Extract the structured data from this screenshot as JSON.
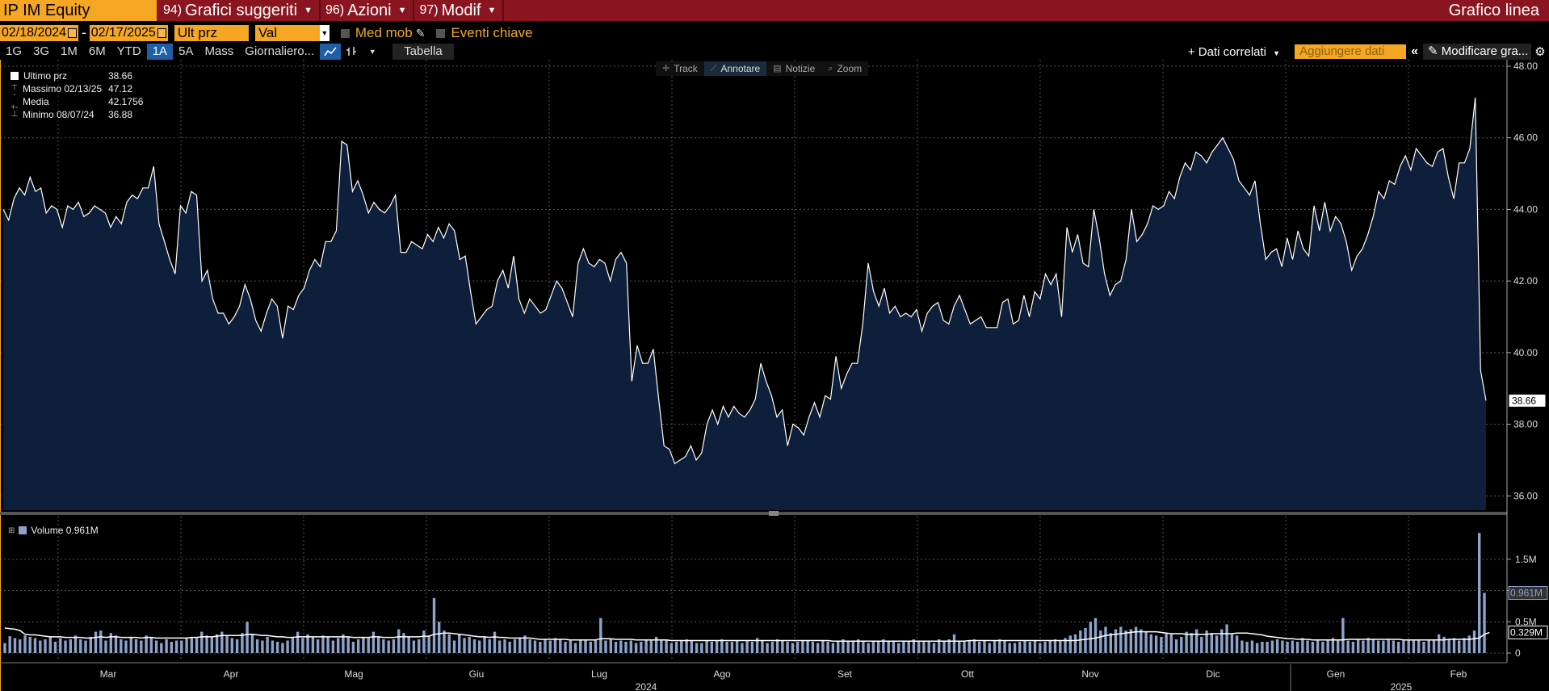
{
  "header": {
    "ticker": "IP IM Equity",
    "menus": [
      {
        "num": "94)",
        "label": "Grafici suggeriti"
      },
      {
        "num": "96)",
        "label": "Azioni"
      },
      {
        "num": "97)",
        "label": "Modif"
      }
    ],
    "chart_type_label": "Grafico linea"
  },
  "controls": {
    "start_date": "02/18/2024",
    "end_date": "02/17/2025",
    "date_separator": "-",
    "field": "Ult prz",
    "currency": "Val locale",
    "moving_avg_label": "Med mob",
    "key_events_label": "Eventi chiave"
  },
  "toolbar": {
    "periods": [
      "1G",
      "3G",
      "1M",
      "6M",
      "YTD",
      "1A",
      "5A",
      "Mass"
    ],
    "active_period": "1A",
    "frequency": "Giornaliero...",
    "table_label": "Tabella",
    "related_data_label": "+ Dati correlati",
    "add_data_placeholder": "Aggiungere dati",
    "modify_chart_label": "Modificare gra...",
    "icons": {
      "line_chart": "line-chart-icon",
      "bar_chart": "ohlc-icon",
      "settings": "gear-icon",
      "collapse": "collapse-icon"
    }
  },
  "chart_tools": [
    {
      "label": "Track",
      "icon": "crosshair-icon",
      "active": false
    },
    {
      "label": "Annotare",
      "icon": "pencil-icon",
      "active": true
    },
    {
      "label": "Notizie",
      "icon": "news-icon",
      "active": false
    },
    {
      "label": "Zoom",
      "icon": "zoom-icon",
      "active": false
    }
  ],
  "legend": [
    {
      "label": "Ultimo prz",
      "value": "38.66"
    },
    {
      "label": "Massimo 02/13/25",
      "value": "47.12"
    },
    {
      "label": "Media",
      "value": "42.1756"
    },
    {
      "label": "Minimo 08/07/24",
      "value": "36.88"
    }
  ],
  "volume_legend": {
    "label": "Volume 0.961M"
  },
  "colors": {
    "accent": "#f5a623",
    "header": "#8a1520",
    "price_fill": "#0d1f3a",
    "volume_bar": "#8ca3cc",
    "active": "#1f5fa8"
  },
  "chart_data": [
    {
      "type": "area",
      "series": [
        {
          "name": "Ultimo prz",
          "values": [
            44.0,
            43.7,
            44.3,
            44.6,
            44.4,
            44.9,
            44.5,
            44.6,
            43.9,
            44.1,
            44.0,
            43.5,
            44.1,
            44.0,
            44.2,
            43.8,
            43.9,
            44.1,
            44.0,
            43.9,
            43.5,
            43.8,
            43.6,
            44.2,
            44.4,
            44.3,
            44.6,
            44.6,
            45.2,
            43.6,
            43.1,
            42.6,
            42.2,
            44.1,
            43.9,
            44.5,
            44.4,
            42.0,
            42.3,
            41.5,
            41.1,
            41.1,
            40.8,
            41.0,
            41.3,
            41.9,
            41.5,
            40.9,
            40.6,
            41.1,
            41.5,
            41.3,
            40.4,
            41.3,
            41.2,
            41.6,
            41.8,
            42.3,
            42.6,
            42.4,
            43.1,
            43.1,
            43.4,
            45.9,
            45.8,
            44.5,
            44.8,
            44.4,
            43.9,
            44.2,
            44.0,
            43.9,
            44.1,
            44.4,
            42.8,
            42.8,
            43.1,
            43.0,
            42.9,
            43.3,
            43.1,
            43.5,
            43.2,
            43.6,
            43.4,
            42.6,
            42.7,
            41.7,
            40.8,
            41.0,
            41.2,
            41.3,
            42.0,
            42.3,
            41.8,
            42.7,
            41.5,
            41.1,
            41.5,
            41.3,
            41.1,
            41.2,
            41.6,
            42.0,
            41.8,
            41.4,
            41.0,
            42.5,
            42.9,
            42.5,
            42.4,
            42.6,
            42.5,
            42.0,
            42.6,
            42.8,
            42.5,
            39.2,
            40.2,
            39.7,
            39.7,
            40.1,
            38.7,
            37.4,
            37.3,
            36.9,
            37.0,
            37.1,
            37.4,
            37.0,
            37.2,
            38.0,
            38.4,
            38.0,
            38.5,
            38.2,
            38.5,
            38.3,
            38.2,
            38.4,
            38.7,
            39.7,
            39.2,
            38.8,
            38.2,
            38.4,
            37.4,
            38.0,
            37.9,
            37.7,
            38.2,
            38.6,
            38.2,
            38.8,
            38.7,
            39.9,
            39.0,
            39.4,
            39.7,
            39.7,
            40.8,
            42.5,
            41.7,
            41.3,
            41.8,
            41.1,
            41.3,
            41.0,
            41.1,
            41.0,
            41.2,
            40.6,
            41.1,
            41.3,
            41.4,
            40.9,
            40.8,
            41.3,
            41.6,
            41.2,
            40.8,
            40.9,
            41.0,
            40.7,
            40.7,
            40.7,
            41.4,
            41.5,
            40.8,
            40.9,
            41.6,
            41.0,
            41.7,
            41.5,
            42.2,
            41.9,
            42.2,
            41.0,
            43.5,
            42.8,
            43.3,
            42.5,
            42.4,
            44.0,
            43.2,
            42.2,
            41.6,
            41.9,
            42.0,
            42.6,
            44.0,
            43.1,
            43.3,
            43.6,
            44.1,
            44.0,
            44.1,
            44.5,
            44.3,
            44.9,
            45.3,
            45.1,
            45.6,
            45.5,
            45.3,
            45.6,
            45.8,
            46.0,
            45.7,
            45.4,
            44.8,
            44.6,
            44.4,
            44.8,
            43.6,
            42.6,
            42.8,
            42.9,
            42.4,
            43.2,
            42.6,
            43.4,
            42.9,
            42.7,
            44.1,
            43.4,
            44.2,
            43.4,
            43.8,
            43.6,
            43.1,
            42.3,
            42.7,
            42.9,
            43.3,
            43.8,
            44.5,
            44.3,
            44.8,
            44.7,
            45.2,
            45.5,
            45.1,
            45.7,
            45.5,
            45.3,
            45.2,
            45.6,
            45.7,
            44.9,
            44.3,
            45.3,
            45.3,
            45.7,
            47.12,
            39.5,
            38.66
          ]
        }
      ],
      "ylim": [
        35.6,
        48.0
      ],
      "yticks": [
        "48.00",
        "46.00",
        "44.00",
        "42.00",
        "40.00",
        "38.00",
        "36.00"
      ],
      "last_value_label": "38.66",
      "grid": true
    },
    {
      "type": "bar",
      "series": [
        {
          "name": "Volume",
          "values": [
            0.16,
            0.27,
            0.24,
            0.22,
            0.28,
            0.26,
            0.24,
            0.2,
            0.22,
            0.26,
            0.18,
            0.24,
            0.2,
            0.22,
            0.28,
            0.22,
            0.2,
            0.26,
            0.34,
            0.36,
            0.2,
            0.32,
            0.28,
            0.22,
            0.2,
            0.26,
            0.22,
            0.2,
            0.28,
            0.26,
            0.2,
            0.16,
            0.22,
            0.18,
            0.2,
            0.2,
            0.24,
            0.26,
            0.24,
            0.34,
            0.28,
            0.26,
            0.3,
            0.34,
            0.28,
            0.24,
            0.22,
            0.32,
            0.5,
            0.3,
            0.22,
            0.2,
            0.26,
            0.2,
            0.18,
            0.16,
            0.2,
            0.24,
            0.34,
            0.24,
            0.3,
            0.26,
            0.22,
            0.28,
            0.26,
            0.2,
            0.24,
            0.3,
            0.26,
            0.18,
            0.22,
            0.26,
            0.24,
            0.34,
            0.26,
            0.22,
            0.2,
            0.22,
            0.38,
            0.32,
            0.26,
            0.2,
            0.22,
            0.36,
            0.28,
            0.88,
            0.5,
            0.36,
            0.3,
            0.2,
            0.3,
            0.24,
            0.26,
            0.22,
            0.2,
            0.26,
            0.22,
            0.34,
            0.2,
            0.22,
            0.18,
            0.22,
            0.24,
            0.28,
            0.22,
            0.2,
            0.18,
            0.22,
            0.2,
            0.24,
            0.22,
            0.18,
            0.2,
            0.16,
            0.2,
            0.22,
            0.18,
            0.2,
            0.56,
            0.2,
            0.22,
            0.18,
            0.2,
            0.18,
            0.2,
            0.16,
            0.18,
            0.22,
            0.2,
            0.26,
            0.2,
            0.22,
            0.16,
            0.18,
            0.2,
            0.22,
            0.2,
            0.16,
            0.16,
            0.2,
            0.18,
            0.2,
            0.22,
            0.18,
            0.18,
            0.2,
            0.16,
            0.2,
            0.18,
            0.24,
            0.2,
            0.16,
            0.18,
            0.22,
            0.2,
            0.18,
            0.16,
            0.18,
            0.2,
            0.2,
            0.18,
            0.16,
            0.2,
            0.18,
            0.16,
            0.2,
            0.22,
            0.18,
            0.2,
            0.22,
            0.18,
            0.16,
            0.2,
            0.18,
            0.22,
            0.2,
            0.18,
            0.16,
            0.18,
            0.2,
            0.22,
            0.18,
            0.2,
            0.2,
            0.16,
            0.22,
            0.2,
            0.22,
            0.3,
            0.2,
            0.18,
            0.2,
            0.22,
            0.18,
            0.2,
            0.16,
            0.2,
            0.22,
            0.2,
            0.16,
            0.16,
            0.18,
            0.2,
            0.18,
            0.2,
            0.16,
            0.18,
            0.2,
            0.22,
            0.2,
            0.24,
            0.28,
            0.3,
            0.36,
            0.4,
            0.5,
            0.56,
            0.36,
            0.42,
            0.32,
            0.38,
            0.42,
            0.36,
            0.38,
            0.42,
            0.38,
            0.34,
            0.3,
            0.28,
            0.26,
            0.32,
            0.3,
            0.22,
            0.26,
            0.34,
            0.32,
            0.38,
            0.26,
            0.36,
            0.32,
            0.28,
            0.38,
            0.46,
            0.3,
            0.28,
            0.2,
            0.18,
            0.2,
            0.16,
            0.18,
            0.18,
            0.2,
            0.22,
            0.2,
            0.18,
            0.2,
            0.18,
            0.24,
            0.2,
            0.18,
            0.22,
            0.18,
            0.2,
            0.24,
            0.2,
            0.56,
            0.2,
            0.18,
            0.22,
            0.2,
            0.24,
            0.22,
            0.2,
            0.2,
            0.22,
            0.2,
            0.18,
            0.2,
            0.22,
            0.2,
            0.22,
            0.18,
            0.2,
            0.2,
            0.3,
            0.26,
            0.22,
            0.24,
            0.2,
            0.24,
            0.28,
            0.36,
            1.92,
            0.961
          ]
        },
        {
          "name": "Media mobile volume",
          "values": [
            0.4,
            0.39,
            0.38,
            0.36,
            0.3,
            0.29,
            0.29,
            0.28,
            0.27,
            0.26,
            0.26,
            0.26,
            0.25,
            0.25,
            0.25,
            0.25,
            0.24,
            0.24,
            0.25,
            0.26,
            0.25,
            0.26,
            0.26,
            0.25,
            0.25,
            0.25,
            0.25,
            0.24,
            0.25,
            0.25,
            0.24,
            0.24,
            0.24,
            0.24,
            0.24,
            0.24,
            0.24,
            0.25,
            0.25,
            0.26,
            0.26,
            0.26,
            0.27,
            0.28,
            0.28,
            0.28,
            0.28,
            0.28,
            0.3,
            0.3,
            0.29,
            0.28,
            0.28,
            0.27,
            0.26,
            0.26,
            0.25,
            0.25,
            0.26,
            0.26,
            0.26,
            0.26,
            0.26,
            0.26,
            0.26,
            0.26,
            0.26,
            0.26,
            0.26,
            0.25,
            0.25,
            0.25,
            0.25,
            0.26,
            0.26,
            0.25,
            0.25,
            0.25,
            0.26,
            0.26,
            0.26,
            0.26,
            0.26,
            0.27,
            0.27,
            0.3,
            0.31,
            0.32,
            0.32,
            0.31,
            0.3,
            0.29,
            0.28,
            0.27,
            0.26,
            0.26,
            0.25,
            0.26,
            0.25,
            0.25,
            0.24,
            0.24,
            0.24,
            0.24,
            0.24,
            0.23,
            0.22,
            0.22,
            0.22,
            0.22,
            0.22,
            0.22,
            0.21,
            0.21,
            0.21,
            0.21,
            0.21,
            0.21,
            0.23,
            0.23,
            0.23,
            0.22,
            0.22,
            0.22,
            0.22,
            0.21,
            0.21,
            0.21,
            0.21,
            0.21,
            0.21,
            0.21,
            0.2,
            0.2,
            0.2,
            0.2,
            0.2,
            0.2,
            0.2,
            0.2,
            0.2,
            0.2,
            0.2,
            0.2,
            0.2,
            0.2,
            0.2,
            0.2,
            0.2,
            0.2,
            0.2,
            0.2,
            0.2,
            0.2,
            0.2,
            0.2,
            0.2,
            0.2,
            0.2,
            0.2,
            0.2,
            0.2,
            0.2,
            0.2,
            0.19,
            0.19,
            0.19,
            0.19,
            0.19,
            0.19,
            0.19,
            0.19,
            0.19,
            0.19,
            0.19,
            0.19,
            0.19,
            0.19,
            0.19,
            0.19,
            0.19,
            0.19,
            0.19,
            0.19,
            0.19,
            0.19,
            0.19,
            0.19,
            0.19,
            0.19,
            0.19,
            0.2,
            0.2,
            0.2,
            0.2,
            0.2,
            0.2,
            0.2,
            0.2,
            0.2,
            0.2,
            0.2,
            0.2,
            0.2,
            0.2,
            0.2,
            0.2,
            0.2,
            0.2,
            0.2,
            0.2,
            0.2,
            0.2,
            0.21,
            0.22,
            0.23,
            0.24,
            0.26,
            0.28,
            0.29,
            0.3,
            0.31,
            0.32,
            0.33,
            0.34,
            0.34,
            0.34,
            0.34,
            0.34,
            0.33,
            0.32,
            0.31,
            0.31,
            0.31,
            0.3,
            0.3,
            0.3,
            0.3,
            0.3,
            0.31,
            0.31,
            0.31,
            0.31,
            0.31,
            0.32,
            0.32,
            0.32,
            0.31,
            0.3,
            0.29,
            0.27,
            0.26,
            0.25,
            0.24,
            0.23,
            0.23,
            0.22,
            0.22,
            0.22,
            0.21,
            0.21,
            0.21,
            0.21,
            0.21,
            0.21,
            0.21,
            0.22,
            0.22,
            0.22,
            0.22,
            0.22,
            0.22,
            0.22,
            0.22,
            0.22,
            0.22,
            0.22,
            0.21,
            0.21,
            0.21,
            0.21,
            0.21,
            0.21,
            0.21,
            0.21,
            0.21,
            0.22,
            0.22,
            0.22,
            0.22,
            0.22,
            0.23,
            0.24,
            0.3,
            0.329
          ]
        }
      ],
      "ylim": [
        0,
        2.0
      ],
      "yticks": [
        {
          "v": 1.5,
          "label": "1.5M"
        },
        {
          "v": 1.0,
          "label": "1M"
        },
        {
          "v": 0.5,
          "label": "0.5M"
        },
        {
          "v": 0,
          "label": "0"
        }
      ],
      "last_value_labels": [
        "0.961M",
        "0.329M"
      ],
      "x_month_labels": [
        "Mar",
        "Apr",
        "Mag",
        "Giu",
        "Lug",
        "Ago",
        "Set",
        "Ott",
        "Nov",
        "Dic",
        "Gen",
        "Feb"
      ],
      "x_year_labels": [
        "2024",
        "2025"
      ]
    }
  ]
}
